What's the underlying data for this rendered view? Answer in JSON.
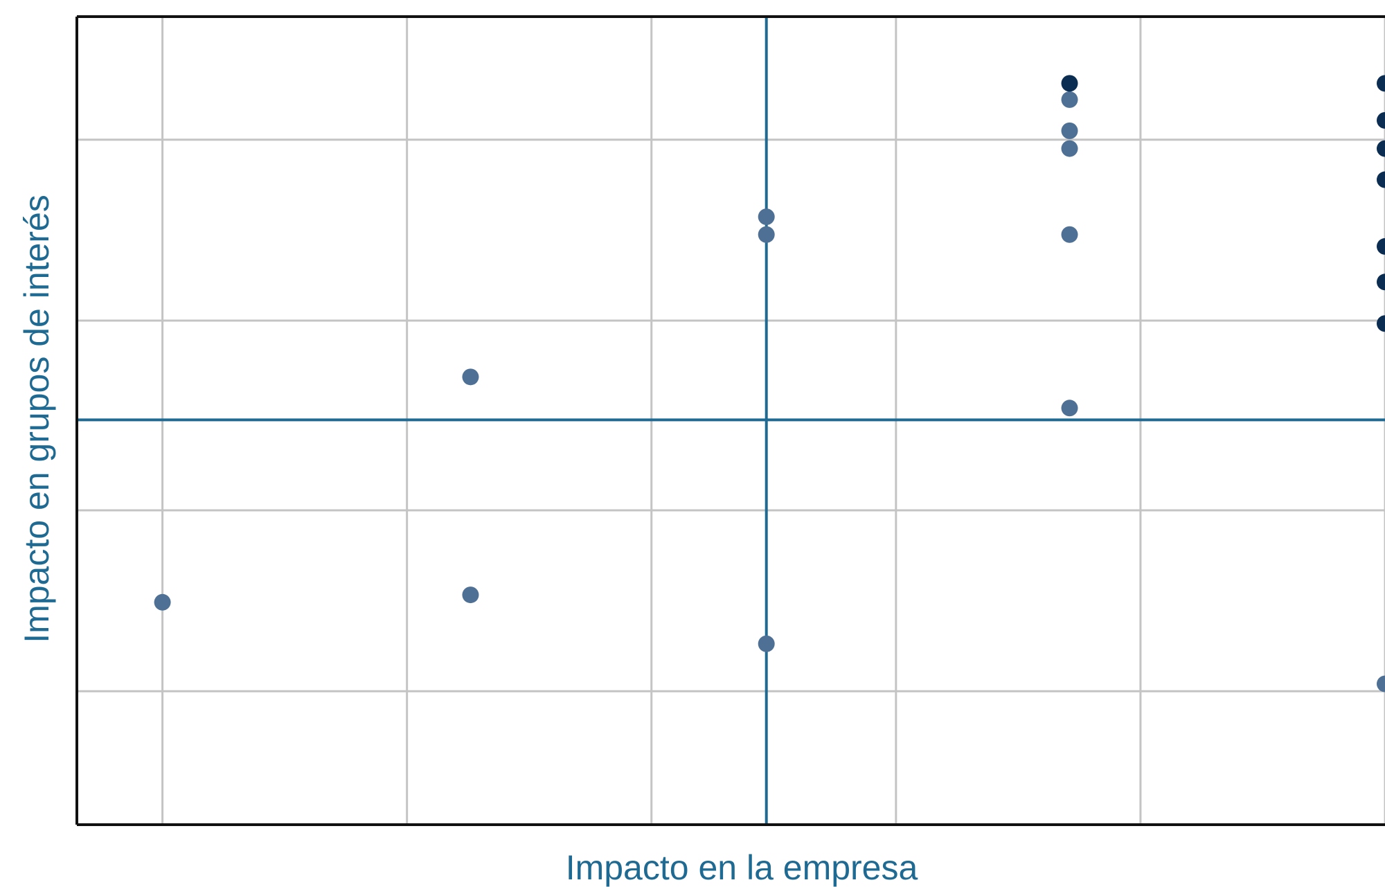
{
  "chart_data": {
    "type": "scatter",
    "title": "",
    "xlabel": "Impacto en la empresa",
    "ylabel": "Impacto en grupos de interés",
    "xlim": [
      0.65,
      6.0
    ],
    "ylim": [
      0.5,
      5.95
    ],
    "x_gridlines": [
      1,
      2,
      3,
      4,
      5,
      6
    ],
    "y_gridlines": [
      1.4,
      2.62,
      3.9,
      5.12
    ],
    "reference_lines": {
      "x": 3.47,
      "y": 3.23
    },
    "grid": true,
    "legend": "none",
    "colors": {
      "light": "#4d7094",
      "dark": "#0c2d52",
      "reference": "#1f6a92",
      "grid": "#c4c4c4",
      "axis_text": "#1f6a92"
    },
    "series": [
      {
        "color_key": "light",
        "points": [
          {
            "x": 1.0,
            "y": 2.0
          },
          {
            "x": 2.26,
            "y": 3.52
          },
          {
            "x": 2.26,
            "y": 2.05
          },
          {
            "x": 3.47,
            "y": 4.6
          },
          {
            "x": 3.47,
            "y": 4.48
          },
          {
            "x": 3.47,
            "y": 1.72
          },
          {
            "x": 4.71,
            "y": 5.39
          },
          {
            "x": 4.71,
            "y": 5.18
          },
          {
            "x": 4.71,
            "y": 5.06
          },
          {
            "x": 4.71,
            "y": 4.48
          },
          {
            "x": 4.71,
            "y": 3.31
          },
          {
            "x": 6.0,
            "y": 1.45
          }
        ]
      },
      {
        "color_key": "dark",
        "points": [
          {
            "x": 4.71,
            "y": 5.5
          },
          {
            "x": 6.0,
            "y": 5.5
          },
          {
            "x": 6.0,
            "y": 5.25
          },
          {
            "x": 6.0,
            "y": 5.06
          },
          {
            "x": 6.0,
            "y": 4.85
          },
          {
            "x": 6.0,
            "y": 4.4
          },
          {
            "x": 6.0,
            "y": 4.16
          },
          {
            "x": 6.0,
            "y": 3.88
          }
        ]
      }
    ]
  }
}
